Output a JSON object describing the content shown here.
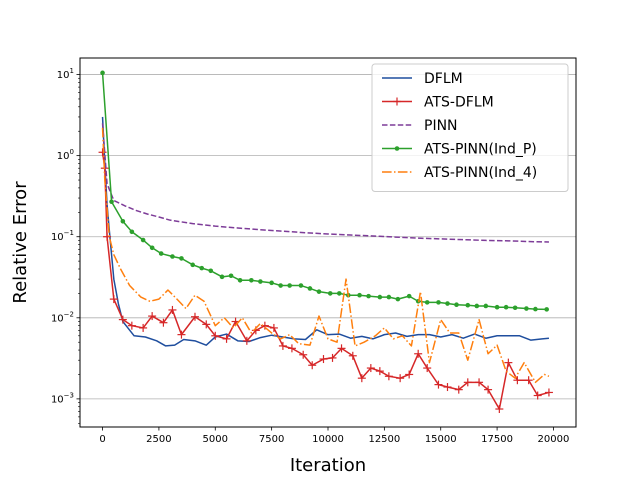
{
  "chart_data": {
    "type": "line",
    "title": "",
    "xlabel": "Iteration",
    "ylabel": "Relative Error",
    "yscale": "log",
    "xlim": [
      -1000,
      21000
    ],
    "ylim": [
      0.00045,
      16
    ],
    "grid": "y-major",
    "legend_position": "top-right",
    "xticks": [
      0,
      2500,
      5000,
      7500,
      10000,
      12500,
      15000,
      17500,
      20000
    ],
    "yticks": [
      {
        "value": 10,
        "base": "10",
        "exp": "1"
      },
      {
        "value": 1,
        "base": "10",
        "exp": "0"
      },
      {
        "value": 0.1,
        "base": "10",
        "exp": "−1"
      },
      {
        "value": 0.01,
        "base": "10",
        "exp": "−2"
      },
      {
        "value": 0.001,
        "base": "10",
        "exp": "−3"
      }
    ],
    "series": [
      {
        "name": "DFLM",
        "color": "#1f4e9e",
        "style": "solid",
        "marker": "none",
        "x": [
          0,
          100,
          200,
          300,
          500,
          700,
          900,
          1400,
          1900,
          2400,
          2800,
          3200,
          3600,
          4100,
          4600,
          5000,
          5500,
          6000,
          6500,
          7000,
          7500,
          8000,
          8500,
          9000,
          9500,
          10000,
          10500,
          11000,
          11500,
          12000,
          12500,
          13000,
          13500,
          14000,
          14500,
          15000,
          15500,
          16000,
          16500,
          17000,
          17500,
          18000,
          18500,
          19000,
          19500,
          19800
        ],
        "y": [
          3.0,
          0.8,
          0.25,
          0.12,
          0.03,
          0.015,
          0.009,
          0.006,
          0.0058,
          0.0052,
          0.0045,
          0.0046,
          0.0054,
          0.0052,
          0.0046,
          0.0058,
          0.0063,
          0.0052,
          0.0051,
          0.0057,
          0.0061,
          0.0058,
          0.0055,
          0.0054,
          0.0071,
          0.0062,
          0.0063,
          0.0056,
          0.0059,
          0.0055,
          0.0062,
          0.0065,
          0.0059,
          0.0062,
          0.0062,
          0.0058,
          0.0062,
          0.0056,
          0.0063,
          0.0056,
          0.006,
          0.006,
          0.006,
          0.0053,
          0.0055,
          0.0056
        ]
      },
      {
        "name": "ATS-DFLM",
        "color": "#d62728",
        "style": "solid",
        "marker": "plus",
        "x": [
          0,
          100,
          200,
          500,
          900,
          1300,
          1800,
          2200,
          2700,
          3100,
          3500,
          4100,
          4600,
          5000,
          5500,
          5900,
          6400,
          6800,
          7200,
          7600,
          8000,
          8400,
          8900,
          9300,
          9800,
          10200,
          10600,
          11100,
          11500,
          11900,
          12300,
          12700,
          13200,
          13600,
          14000,
          14400,
          14900,
          15300,
          15800,
          16200,
          16700,
          17100,
          17600,
          18000,
          18400,
          18900,
          19300,
          19800
        ],
        "y": [
          1.1,
          0.7,
          0.1,
          0.017,
          0.0095,
          0.008,
          0.0075,
          0.0105,
          0.0087,
          0.0125,
          0.0062,
          0.0103,
          0.0083,
          0.006,
          0.0055,
          0.009,
          0.0052,
          0.007,
          0.008,
          0.0075,
          0.0045,
          0.0042,
          0.0035,
          0.0026,
          0.0031,
          0.0032,
          0.0042,
          0.0034,
          0.0018,
          0.0024,
          0.0022,
          0.0019,
          0.0018,
          0.002,
          0.0036,
          0.0024,
          0.0015,
          0.0014,
          0.0013,
          0.0016,
          0.0016,
          0.0013,
          0.00075,
          0.0028,
          0.0017,
          0.0017,
          0.0011,
          0.0012
        ]
      },
      {
        "name": "PINN",
        "color": "#7d3c98",
        "style": "dashed",
        "marker": "none",
        "x": [
          0,
          200,
          500,
          1000,
          1500,
          2000,
          2500,
          3000,
          4000,
          5000,
          6000,
          7000,
          8000,
          9000,
          10000,
          11000,
          12000,
          13000,
          14000,
          15000,
          16000,
          17000,
          18000,
          19000,
          19800
        ],
        "y": [
          2.5,
          0.45,
          0.28,
          0.24,
          0.21,
          0.19,
          0.175,
          0.16,
          0.145,
          0.135,
          0.128,
          0.122,
          0.117,
          0.112,
          0.108,
          0.105,
          0.102,
          0.099,
          0.096,
          0.094,
          0.092,
          0.09,
          0.089,
          0.087,
          0.086
        ]
      },
      {
        "name": "ATS-PINN(Ind_P)",
        "color": "#2ca02c",
        "style": "solid",
        "marker": "dot",
        "x": [
          0,
          400,
          900,
          1300,
          1800,
          2200,
          2600,
          3100,
          3500,
          4000,
          4400,
          4800,
          5300,
          5700,
          6100,
          6600,
          7000,
          7500,
          7900,
          8300,
          8800,
          9200,
          9600,
          10100,
          10500,
          10900,
          11400,
          11800,
          12300,
          12700,
          13100,
          13600,
          14000,
          14400,
          14900,
          15300,
          15700,
          16200,
          16600,
          17000,
          17500,
          17900,
          18300,
          18800,
          19200,
          19700
        ],
        "y": [
          10.5,
          0.27,
          0.155,
          0.115,
          0.091,
          0.073,
          0.062,
          0.057,
          0.054,
          0.045,
          0.041,
          0.038,
          0.032,
          0.033,
          0.029,
          0.029,
          0.028,
          0.027,
          0.025,
          0.025,
          0.025,
          0.023,
          0.021,
          0.02,
          0.02,
          0.019,
          0.019,
          0.0185,
          0.018,
          0.018,
          0.017,
          0.0185,
          0.016,
          0.0155,
          0.0155,
          0.015,
          0.0145,
          0.0143,
          0.014,
          0.014,
          0.0135,
          0.0135,
          0.0133,
          0.013,
          0.0128,
          0.0127
        ]
      },
      {
        "name": "ATS-PINN(Ind_4)",
        "color": "#ff7f0e",
        "style": "dashdot",
        "marker": "none",
        "x": [
          0,
          100,
          300,
          500,
          800,
          1200,
          1700,
          2100,
          2500,
          2900,
          3300,
          3700,
          4100,
          4500,
          5000,
          5400,
          5800,
          6200,
          6600,
          7000,
          7500,
          7900,
          8300,
          8700,
          9200,
          9600,
          10000,
          10400,
          10800,
          11200,
          11600,
          12100,
          12500,
          12900,
          13300,
          13700,
          14100,
          14500,
          15000,
          15400,
          15800,
          16200,
          16700,
          17100,
          17500,
          17900,
          18300,
          18700,
          19200,
          19600,
          19800
        ],
        "y": [
          2.2,
          0.5,
          0.1,
          0.06,
          0.04,
          0.025,
          0.018,
          0.016,
          0.017,
          0.022,
          0.017,
          0.013,
          0.019,
          0.016,
          0.008,
          0.01,
          0.0075,
          0.01,
          0.0065,
          0.0085,
          0.0065,
          0.0055,
          0.0062,
          0.0048,
          0.0046,
          0.0105,
          0.0055,
          0.005,
          0.03,
          0.0045,
          0.005,
          0.006,
          0.0075,
          0.0055,
          0.006,
          0.0045,
          0.021,
          0.0028,
          0.0095,
          0.0065,
          0.0065,
          0.003,
          0.0095,
          0.0036,
          0.0046,
          0.0022,
          0.0018,
          0.0028,
          0.0016,
          0.002,
          0.0019
        ]
      }
    ]
  }
}
